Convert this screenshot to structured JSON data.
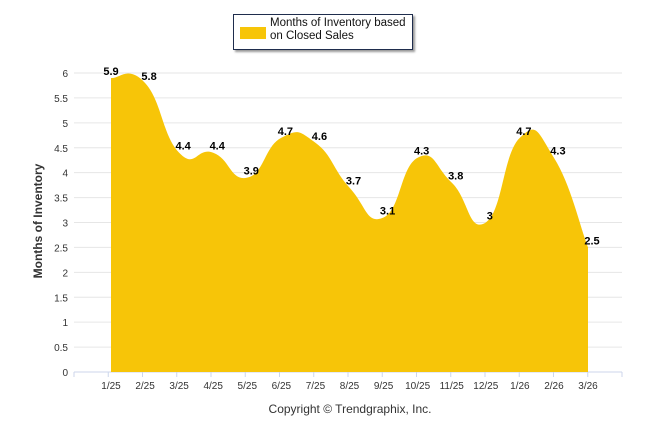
{
  "chart_data": {
    "type": "area",
    "categories": [
      "1/25",
      "2/25",
      "3/25",
      "4/25",
      "5/25",
      "6/25",
      "7/25",
      "8/25",
      "9/25",
      "10/25",
      "11/25",
      "12/25",
      "1/26",
      "2/26",
      "3/26"
    ],
    "series": [
      {
        "name": "Months of Inventory based on Closed Sales",
        "values": [
          5.9,
          5.8,
          4.4,
          4.4,
          3.9,
          4.7,
          4.6,
          3.7,
          3.1,
          4.3,
          3.8,
          3,
          4.7,
          4.3,
          2.5
        ],
        "color": "#f7c508"
      }
    ],
    "ylabel": "Months of Inventory",
    "xlabel": "",
    "ylim": [
      0,
      6
    ],
    "yticks": [
      "0",
      "0.5",
      "1",
      "1.5",
      "2",
      "2.5",
      "3",
      "3.5",
      "4",
      "4.5",
      "5",
      "5.5",
      "6"
    ],
    "grid": true,
    "legend_position": "top-center",
    "legend_label_line1": "Months of Inventory based",
    "legend_label_line2": "on Closed Sales"
  },
  "footer": {
    "copyright": "Copyright © Trendgraphix, Inc."
  }
}
